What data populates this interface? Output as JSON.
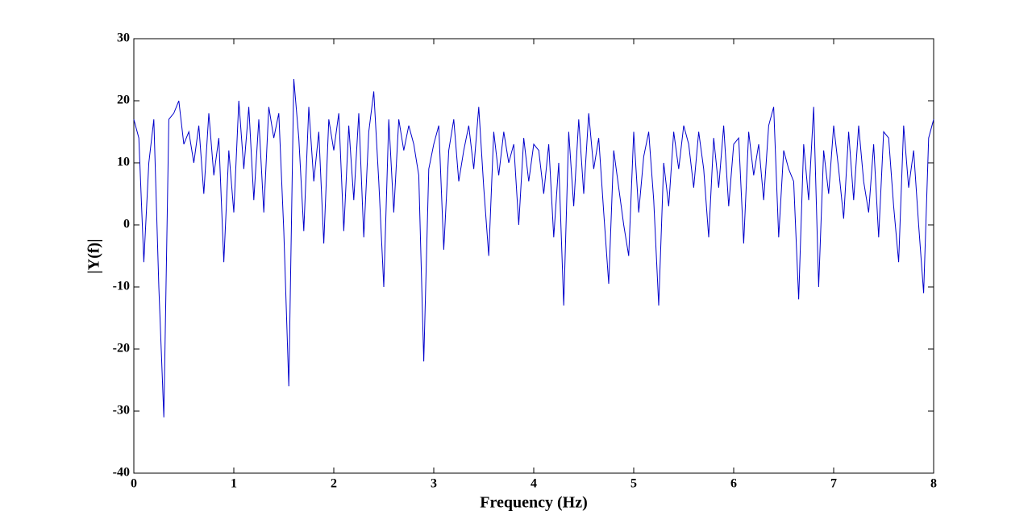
{
  "chart_data": {
    "type": "line",
    "xlabel": "Frequency (Hz)",
    "ylabel": "|Y(f)|",
    "x": [
      0,
      0.05,
      0.1,
      0.15,
      0.2,
      0.25,
      0.3,
      0.35,
      0.4,
      0.45,
      0.5,
      0.55,
      0.6,
      0.65,
      0.7,
      0.75,
      0.8,
      0.85,
      0.9,
      0.95,
      1,
      1.05,
      1.1,
      1.15,
      1.2,
      1.25,
      1.3,
      1.35,
      1.4,
      1.45,
      1.5,
      1.55,
      1.6,
      1.65,
      1.7,
      1.75,
      1.8,
      1.85,
      1.9,
      1.95,
      2,
      2.05,
      2.1,
      2.15,
      2.2,
      2.25,
      2.3,
      2.35,
      2.4,
      2.45,
      2.5,
      2.55,
      2.6,
      2.65,
      2.7,
      2.75,
      2.8,
      2.85,
      2.9,
      2.95,
      3,
      3.05,
      3.1,
      3.15,
      3.2,
      3.25,
      3.3,
      3.35,
      3.4,
      3.45,
      3.5,
      3.55,
      3.6,
      3.65,
      3.7,
      3.75,
      3.8,
      3.85,
      3.9,
      3.95,
      4,
      4.05,
      4.1,
      4.15,
      4.2,
      4.25,
      4.3,
      4.35,
      4.4,
      4.45,
      4.5,
      4.55,
      4.6,
      4.65,
      4.7,
      4.75,
      4.8,
      4.85,
      4.9,
      4.95,
      5,
      5.05,
      5.1,
      5.15,
      5.2,
      5.25,
      5.3,
      5.35,
      5.4,
      5.45,
      5.5,
      5.55,
      5.6,
      5.65,
      5.7,
      5.75,
      5.8,
      5.85,
      5.9,
      5.95,
      6,
      6.05,
      6.1,
      6.15,
      6.2,
      6.25,
      6.3,
      6.35,
      6.4,
      6.45,
      6.5,
      6.55,
      6.6,
      6.65,
      6.7,
      6.75,
      6.8,
      6.85,
      6.9,
      6.95,
      7,
      7.05,
      7.1,
      7.15,
      7.2,
      7.25,
      7.3,
      7.35,
      7.4,
      7.45,
      7.5,
      7.55,
      7.6,
      7.65,
      7.7,
      7.75,
      7.8,
      7.85,
      7.9,
      7.95,
      8
    ],
    "series": [
      {
        "color": "#0000cc",
        "values": [
          17,
          14,
          -6,
          10,
          17,
          -10,
          -31,
          17,
          18,
          20,
          13,
          15,
          10,
          16,
          5,
          18,
          8,
          14,
          -6,
          12,
          2,
          20,
          9,
          19,
          4,
          17,
          2,
          19,
          14,
          18,
          -1,
          -26,
          23.5,
          14,
          -1,
          19,
          7,
          15,
          -3,
          17,
          12,
          18,
          -1,
          16,
          4,
          18,
          -2,
          15,
          21.5,
          7,
          -10,
          17,
          2,
          17,
          12,
          16,
          13,
          8,
          -22,
          9,
          13,
          16,
          -4,
          12,
          17,
          7,
          12,
          16,
          9,
          19,
          6,
          -5,
          15,
          8,
          15,
          10,
          13,
          0,
          14,
          7,
          13,
          12,
          5,
          13,
          -2,
          10,
          -13,
          15,
          3,
          17,
          5,
          18,
          9,
          14,
          2,
          -9.5,
          12,
          6,
          0,
          -5,
          15,
          2,
          11,
          15,
          4,
          -13,
          10,
          3,
          15,
          9,
          16,
          13,
          6,
          15,
          9,
          -2,
          14,
          6,
          16,
          3,
          13,
          14,
          -3,
          15,
          8,
          13,
          4,
          16,
          19,
          -2,
          12,
          9,
          7,
          -12,
          13,
          4,
          19,
          -10,
          12,
          5,
          16,
          9,
          1,
          15,
          4,
          16,
          7,
          2,
          13,
          -2,
          15,
          14,
          3,
          -6,
          16,
          6,
          12,
          0,
          -11,
          14,
          17
        ]
      }
    ],
    "xlim": [
      0,
      8
    ],
    "xticks": [
      0,
      1,
      2,
      3,
      4,
      5,
      6,
      7,
      8
    ],
    "ylim": [
      -40,
      30
    ],
    "yticks": [
      -40,
      -30,
      -20,
      -10,
      0,
      10,
      20,
      30
    ]
  }
}
